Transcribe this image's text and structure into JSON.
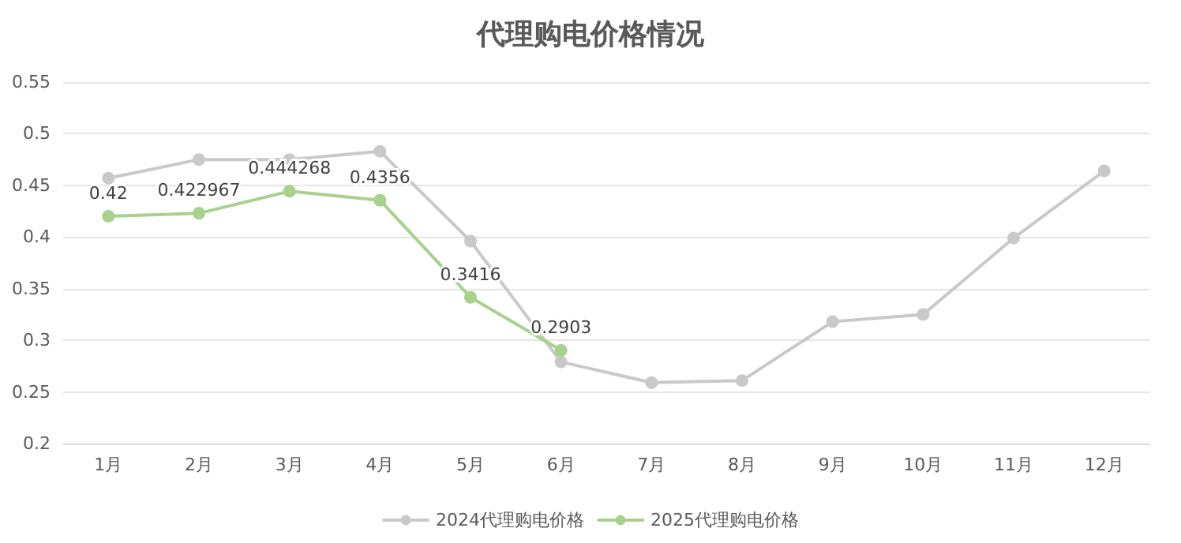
{
  "chart_data": {
    "type": "line",
    "title": "代理购电价格情况",
    "categories": [
      "1月",
      "2月",
      "3月",
      "4月",
      "5月",
      "6月",
      "7月",
      "8月",
      "9月",
      "10月",
      "11月",
      "12月"
    ],
    "series": [
      {
        "name": "2024代理购电价格",
        "color": "#c9c9c9",
        "values": [
          0.457,
          0.475,
          0.475,
          0.483,
          0.396,
          0.279,
          0.259,
          0.261,
          0.318,
          0.325,
          0.399,
          0.464
        ]
      },
      {
        "name": "2025代理购电价格",
        "color": "#a9d18e",
        "values": [
          0.42,
          0.422967,
          0.444268,
          0.4356,
          0.3416,
          0.2903,
          null,
          null,
          null,
          null,
          null,
          null
        ],
        "value_labels": [
          "0.42",
          "0.422967",
          "0.444268",
          "0.4356",
          "0.3416",
          "0.2903",
          null,
          null,
          null,
          null,
          null,
          null
        ]
      }
    ],
    "ylim": [
      0.2,
      0.55
    ],
    "yticks": [
      0.2,
      0.25,
      0.3,
      0.35,
      0.4,
      0.45,
      0.5,
      0.55
    ],
    "grid": "y",
    "legend": "bottom",
    "marker": "circle",
    "line_style": "solid"
  }
}
